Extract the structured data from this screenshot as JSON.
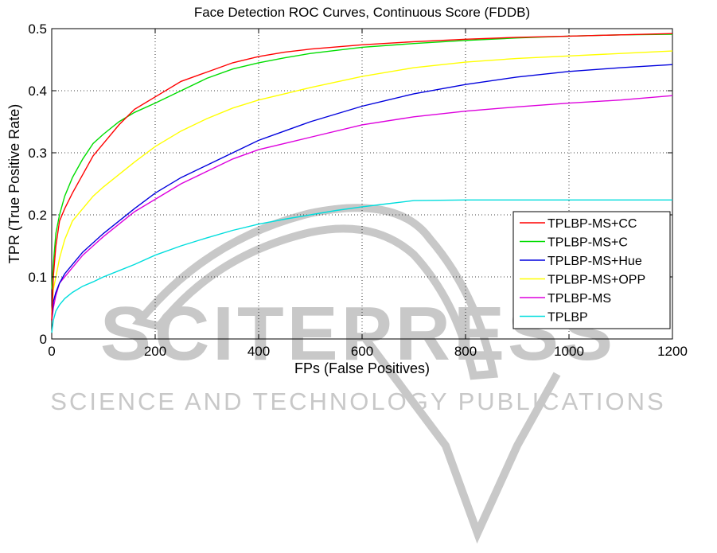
{
  "watermark": {
    "big": "SCITEPRESS",
    "small": "SCIENCE AND TECHNOLOGY PUBLICATIONS",
    "color": "#c8c8c8"
  },
  "chart_data": {
    "type": "line",
    "title": "Face Detection ROC Curves, Continuous Score (FDDB)",
    "xlabel": "FPs (False Positives)",
    "ylabel": "TPR (True Positive Rate)",
    "xlim": [
      0,
      1200
    ],
    "ylim": [
      0,
      0.5
    ],
    "xticks": [
      "0",
      "200",
      "400",
      "600",
      "800",
      "1000",
      "1200"
    ],
    "yticks": [
      "0",
      "0.1",
      "0.2",
      "0.3",
      "0.4",
      "0.5"
    ],
    "grid": "dotted",
    "legend_position": "bottom-right",
    "series": [
      {
        "name": "TPLBP-MS+CC",
        "color": "#ff0000",
        "x": [
          0,
          3,
          8,
          15,
          25,
          40,
          60,
          80,
          100,
          130,
          160,
          200,
          250,
          300,
          350,
          400,
          450,
          500,
          600,
          700,
          800,
          900,
          1000,
          1100,
          1200
        ],
        "y": [
          0.03,
          0.1,
          0.15,
          0.19,
          0.21,
          0.235,
          0.265,
          0.295,
          0.315,
          0.345,
          0.37,
          0.39,
          0.415,
          0.43,
          0.445,
          0.455,
          0.462,
          0.467,
          0.474,
          0.479,
          0.483,
          0.486,
          0.488,
          0.49,
          0.492
        ]
      },
      {
        "name": "TPLBP-MS+C",
        "color": "#00dd00",
        "x": [
          0,
          3,
          8,
          15,
          25,
          40,
          60,
          80,
          100,
          130,
          160,
          200,
          250,
          300,
          350,
          400,
          450,
          500,
          600,
          700,
          800,
          900,
          1000,
          1100,
          1200
        ],
        "y": [
          0.08,
          0.12,
          0.17,
          0.2,
          0.23,
          0.26,
          0.29,
          0.315,
          0.33,
          0.35,
          0.365,
          0.38,
          0.4,
          0.42,
          0.435,
          0.445,
          0.453,
          0.46,
          0.47,
          0.476,
          0.481,
          0.485,
          0.488,
          0.49,
          0.491
        ]
      },
      {
        "name": "TPLBP-MS+Hue",
        "color": "#0000dd",
        "x": [
          0,
          3,
          8,
          15,
          25,
          40,
          60,
          80,
          100,
          130,
          160,
          200,
          250,
          300,
          350,
          400,
          450,
          500,
          600,
          700,
          800,
          900,
          1000,
          1100,
          1200
        ],
        "y": [
          0.03,
          0.06,
          0.075,
          0.09,
          0.105,
          0.12,
          0.14,
          0.155,
          0.17,
          0.19,
          0.21,
          0.235,
          0.26,
          0.28,
          0.3,
          0.32,
          0.335,
          0.35,
          0.375,
          0.395,
          0.41,
          0.422,
          0.431,
          0.437,
          0.442
        ]
      },
      {
        "name": "TPLBP-MS+OPP",
        "color": "#ffff00",
        "x": [
          0,
          3,
          8,
          15,
          25,
          40,
          60,
          80,
          100,
          130,
          160,
          200,
          250,
          300,
          350,
          400,
          450,
          500,
          600,
          700,
          800,
          900,
          1000,
          1100,
          1200
        ],
        "y": [
          0.04,
          0.08,
          0.1,
          0.13,
          0.16,
          0.19,
          0.21,
          0.23,
          0.245,
          0.265,
          0.285,
          0.31,
          0.335,
          0.355,
          0.372,
          0.385,
          0.395,
          0.405,
          0.423,
          0.437,
          0.446,
          0.452,
          0.456,
          0.46,
          0.464
        ]
      },
      {
        "name": "TPLBP-MS",
        "color": "#dd00dd",
        "x": [
          0,
          3,
          8,
          15,
          25,
          40,
          60,
          80,
          100,
          130,
          160,
          200,
          250,
          300,
          350,
          400,
          450,
          500,
          600,
          700,
          800,
          900,
          1000,
          1100,
          1200
        ],
        "y": [
          0.03,
          0.05,
          0.07,
          0.09,
          0.1,
          0.115,
          0.135,
          0.15,
          0.165,
          0.185,
          0.205,
          0.225,
          0.25,
          0.27,
          0.29,
          0.305,
          0.315,
          0.325,
          0.345,
          0.358,
          0.367,
          0.374,
          0.38,
          0.385,
          0.392
        ]
      },
      {
        "name": "TPLBP",
        "color": "#00dddd",
        "x": [
          0,
          3,
          8,
          15,
          25,
          40,
          60,
          80,
          100,
          130,
          160,
          200,
          250,
          300,
          350,
          400,
          450,
          500,
          550,
          600,
          650,
          700,
          800,
          900,
          1000,
          1100,
          1200
        ],
        "y": [
          0.01,
          0.03,
          0.045,
          0.055,
          0.065,
          0.075,
          0.085,
          0.092,
          0.1,
          0.11,
          0.12,
          0.135,
          0.15,
          0.163,
          0.175,
          0.185,
          0.193,
          0.2,
          0.207,
          0.213,
          0.218,
          0.223,
          0.224,
          0.224,
          0.224,
          0.224,
          0.224
        ]
      }
    ]
  }
}
